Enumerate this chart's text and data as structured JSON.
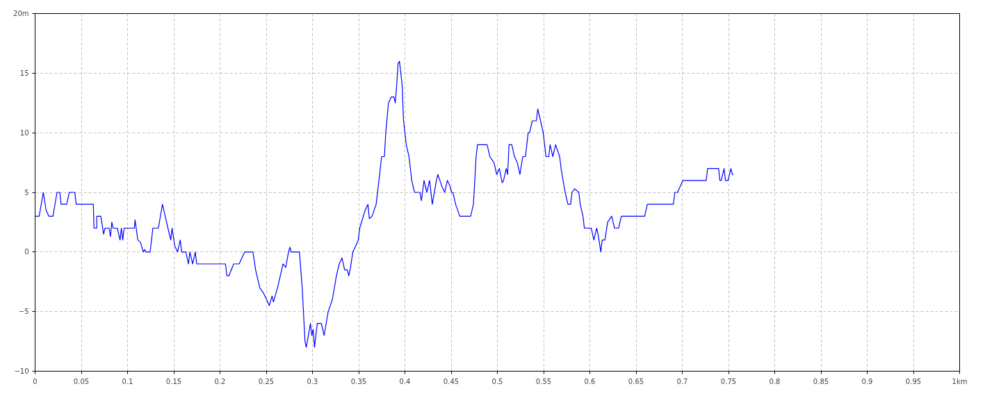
{
  "chart_data": {
    "type": "line",
    "xlim": [
      0,
      1
    ],
    "ylim": [
      -10,
      20
    ],
    "xticks": [
      0,
      0.05,
      0.1,
      0.15,
      0.2,
      0.25,
      0.3,
      0.35,
      0.4,
      0.45,
      0.5,
      0.55,
      0.6,
      0.65,
      0.7,
      0.75,
      0.8,
      0.85,
      0.9,
      0.95,
      {
        "value": 1,
        "label": "1km"
      }
    ],
    "yticks": [
      -10,
      -5,
      0,
      5,
      10,
      15,
      {
        "value": 20,
        "label": "20m"
      }
    ],
    "grid": true,
    "marker": "none",
    "line_style": "solid",
    "series": [
      {
        "color": "#0000ff",
        "x": [
          0,
          0.0044,
          0.0089,
          0.0119,
          0.0148,
          0.0193,
          0.0237,
          0.0267,
          0.0281,
          0.0341,
          0.037,
          0.043,
          0.0444,
          0.063,
          0.0637,
          0.0667,
          0.0667,
          0.0711,
          0.0741,
          0.0756,
          0.08,
          0.0815,
          0.083,
          0.0844,
          0.0889,
          0.0919,
          0.0933,
          0.0948,
          0.0963,
          0.1074,
          0.1081,
          0.1111,
          0.1141,
          0.117,
          0.1185,
          0.12,
          0.1244,
          0.1274,
          0.1333,
          0.1378,
          0.1407,
          0.1437,
          0.1467,
          0.1481,
          0.1511,
          0.1541,
          0.157,
          0.1585,
          0.163,
          0.1659,
          0.1674,
          0.1704,
          0.1733,
          0.1748,
          0.2059,
          0.2074,
          0.2096,
          0.2148,
          0.2207,
          0.2267,
          0.2356,
          0.2385,
          0.243,
          0.2474,
          0.2504,
          0.2533,
          0.2563,
          0.2578,
          0.2622,
          0.2667,
          0.2681,
          0.2711,
          0.2741,
          0.2756,
          0.277,
          0.2859,
          0.2889,
          0.2919,
          0.2933,
          0.2978,
          0.2993,
          0.3007,
          0.3022,
          0.3052,
          0.3096,
          0.3126,
          0.317,
          0.3215,
          0.3259,
          0.3289,
          0.3319,
          0.3348,
          0.3378,
          0.3393,
          0.3407,
          0.3437,
          0.3467,
          0.3496,
          0.3511,
          0.357,
          0.36,
          0.3615,
          0.3644,
          0.3689,
          0.3719,
          0.3748,
          0.3778,
          0.3793,
          0.3822,
          0.3852,
          0.3881,
          0.3896,
          0.3911,
          0.3926,
          0.3941,
          0.397,
          0.3985,
          0.4015,
          0.4044,
          0.4074,
          0.4104,
          0.4163,
          0.4178,
          0.4207,
          0.4237,
          0.4267,
          0.4296,
          0.4341,
          0.4356,
          0.44,
          0.443,
          0.4459,
          0.4489,
          0.4504,
          0.4519,
          0.4548,
          0.4593,
          0.4711,
          0.4741,
          0.477,
          0.4785,
          0.4889,
          0.4919,
          0.4963,
          0.4993,
          0.5022,
          0.5052,
          0.5067,
          0.5096,
          0.5111,
          0.5126,
          0.5156,
          0.5185,
          0.5215,
          0.5244,
          0.5274,
          0.5304,
          0.5333,
          0.5348,
          0.5378,
          0.5422,
          0.5437,
          0.5467,
          0.5496,
          0.5526,
          0.5556,
          0.557,
          0.56,
          0.563,
          0.5674,
          0.5689,
          0.5733,
          0.5763,
          0.5793,
          0.5807,
          0.5837,
          0.5881,
          0.5896,
          0.5926,
          0.5941,
          0.6015,
          0.6044,
          0.6074,
          0.6089,
          0.6119,
          0.6133,
          0.6163,
          0.6193,
          0.6237,
          0.6252,
          0.6267,
          0.6311,
          0.6341,
          0.6593,
          0.6622,
          0.6904,
          0.6919,
          0.6948,
          0.7007,
          0.7259,
          0.7274,
          0.7393,
          0.7407,
          0.7422,
          0.7452,
          0.7467,
          0.7496,
          0.7526,
          0.7541,
          0.7556
        ],
        "values": [
          3,
          3,
          5,
          3.5,
          3,
          3,
          5,
          5,
          4,
          4,
          5,
          5,
          4,
          4,
          2,
          2,
          3,
          3,
          1.5,
          2,
          2,
          1.3,
          2.5,
          2,
          2,
          1,
          2,
          1,
          2,
          2,
          2.7,
          1,
          0.8,
          0,
          0.2,
          0,
          0,
          2,
          2,
          4,
          3,
          2,
          1,
          2,
          0.5,
          0,
          1,
          0,
          0,
          -1,
          0,
          -1,
          0,
          -1,
          -1,
          -2,
          -2,
          -1,
          -1,
          0,
          0,
          -1.5,
          -3,
          -3.5,
          -4,
          -4.5,
          -3.7,
          -4.2,
          -3,
          -1.5,
          -1,
          -1.3,
          0,
          0.4,
          0,
          0,
          -3,
          -7.5,
          -8,
          -6,
          -7,
          -6.5,
          -8,
          -6,
          -6,
          -7,
          -5,
          -4,
          -2,
          -1,
          -0.5,
          -1.5,
          -1.5,
          -2,
          -1.5,
          0,
          0.5,
          1,
          2,
          3.5,
          4,
          2.8,
          3,
          4,
          6,
          8,
          8,
          10,
          12.5,
          13,
          13,
          12.5,
          14,
          15.8,
          16,
          14,
          11,
          9,
          8,
          6,
          5,
          5,
          4.3,
          6,
          5,
          6,
          4,
          6,
          6.5,
          5.5,
          5,
          6,
          5.5,
          5,
          5,
          4,
          3,
          3,
          4,
          8,
          9,
          9,
          8,
          7.5,
          6.5,
          7,
          5.8,
          6,
          7,
          6.5,
          9,
          9,
          8,
          7.5,
          6.5,
          8,
          8,
          10,
          10,
          11,
          11,
          12,
          11,
          10,
          8,
          8,
          9,
          8,
          9,
          8,
          7,
          5,
          4,
          4,
          5,
          5.3,
          5,
          4,
          3,
          2,
          2,
          1,
          2,
          1.5,
          0,
          1,
          1,
          2.5,
          3,
          2.5,
          2,
          2,
          3,
          3,
          4,
          4,
          5,
          5,
          6,
          6,
          7,
          7,
          6,
          6,
          7,
          6,
          6,
          7,
          6.5,
          6.5
        ]
      }
    ]
  }
}
